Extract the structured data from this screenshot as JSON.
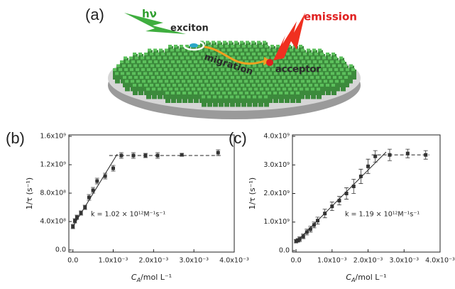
{
  "diagram": {
    "panel_label": "(a)",
    "light": "hν",
    "exciton": "exciton",
    "migration": "migration",
    "acceptor": "acceptor",
    "emission": "emission"
  },
  "chart_data": [
    {
      "type": "scatter",
      "panel_label": "(b)",
      "y_label": "1/τ (s⁻¹)",
      "x_label": {
        "symbol": "C",
        "subscript": "A",
        "unit": "/mol L⁻¹"
      },
      "annotation": "k = 1.02 × 10¹²M⁻¹s⁻¹",
      "color": "#333333",
      "x": [
        0,
        5e-05,
        0.0001,
        0.0002,
        0.0003,
        0.0004,
        0.0005,
        0.0006,
        0.0008,
        0.001,
        0.0012,
        0.0015,
        0.0018,
        0.0021,
        0.0027,
        0.0036
      ],
      "values": [
        330000000,
        410000000,
        460000000,
        520000000,
        600000000,
        740000000,
        840000000,
        970000000,
        1040000000,
        1150000000,
        1330000000,
        1330000000,
        1330000000,
        1330000000,
        1340000000,
        1370000000
      ],
      "errors": [
        30000000,
        30000000,
        30000000,
        30000000,
        30000000,
        40000000,
        40000000,
        40000000,
        40000000,
        40000000,
        40000000,
        40000000,
        30000000,
        40000000,
        20000000,
        40000000
      ],
      "lines": [
        {
          "x": [
            0,
            0.0011
          ],
          "values": [
            330000000,
            1350000000
          ],
          "dashed": false
        },
        {
          "x": [
            0.0009,
            0.0037
          ],
          "values": [
            1330000000,
            1330000000
          ],
          "dashed": true
        }
      ],
      "xlim": [
        -0.0001,
        0.004
      ],
      "ylim": [
        -30000000,
        1620000000
      ],
      "xticks": [
        {
          "value": 0,
          "label": "0.0"
        },
        {
          "value": 0.001,
          "label": "1.0x10⁻³"
        },
        {
          "value": 0.002,
          "label": "2.0x10⁻³"
        },
        {
          "value": 0.003,
          "label": "3.0x10⁻³"
        },
        {
          "value": 0.004,
          "label": "4.0x10⁻³"
        }
      ],
      "yticks": [
        {
          "value": 0,
          "label": "0.0"
        },
        {
          "value": 400000000,
          "label": "4.0x10⁸"
        },
        {
          "value": 800000000,
          "label": "8.0x10⁸"
        },
        {
          "value": 1200000000,
          "label": "1.2x10⁹"
        },
        {
          "value": 1600000000,
          "label": "1.6x10⁹"
        }
      ],
      "grid": false
    },
    {
      "type": "scatter",
      "panel_label": "(c)",
      "y_label": "1/τ (s⁻¹)",
      "x_label": {
        "symbol": "C",
        "subscript": "A",
        "unit": "/mol L⁻¹"
      },
      "annotation": "k = 1.19 × 10¹²M⁻¹s⁻¹",
      "color": "#333333",
      "x": [
        0,
        5e-05,
        0.0001,
        0.0002,
        0.0003,
        0.0004,
        0.0005,
        0.0006,
        0.0008,
        0.001,
        0.0012,
        0.0014,
        0.0016,
        0.0018,
        0.002,
        0.0022,
        0.0026,
        0.0031,
        0.0036
      ],
      "values": [
        330000000,
        360000000,
        400000000,
        500000000,
        650000000,
        750000000,
        900000000,
        1050000000,
        1300000000,
        1550000000,
        1750000000,
        2000000000,
        2250000000,
        2600000000,
        2950000000,
        3300000000,
        3350000000,
        3400000000,
        3350000000
      ],
      "errors": [
        60000000,
        60000000,
        80000000,
        80000000,
        100000000,
        100000000,
        100000000,
        120000000,
        150000000,
        150000000,
        150000000,
        200000000,
        250000000,
        250000000,
        250000000,
        200000000,
        200000000,
        150000000,
        150000000
      ],
      "lines": [
        {
          "x": [
            0,
            0.0025
          ],
          "values": [
            300000000,
            3450000000
          ],
          "dashed": false
        },
        {
          "x": [
            0.0021,
            0.0037
          ],
          "values": [
            3350000000,
            3350000000
          ],
          "dashed": true
        }
      ],
      "xlim": [
        -0.0001,
        0.004
      ],
      "ylim": [
        -50000000,
        4050000000
      ],
      "xticks": [
        {
          "value": 0,
          "label": "0.0"
        },
        {
          "value": 0.001,
          "label": "1.0x10⁻³"
        },
        {
          "value": 0.002,
          "label": "2.0x10⁻³"
        },
        {
          "value": 0.003,
          "label": "3.0x10⁻³"
        },
        {
          "value": 0.004,
          "label": "4.0x10⁻³"
        }
      ],
      "yticks": [
        {
          "value": 0,
          "label": "0.0"
        },
        {
          "value": 1000000000,
          "label": "1.0x10⁹"
        },
        {
          "value": 2000000000,
          "label": "2.0x10⁹"
        },
        {
          "value": 3000000000,
          "label": "3.0x10⁹"
        },
        {
          "value": 4000000000,
          "label": "4.0x10⁹"
        }
      ],
      "grid": false
    }
  ]
}
